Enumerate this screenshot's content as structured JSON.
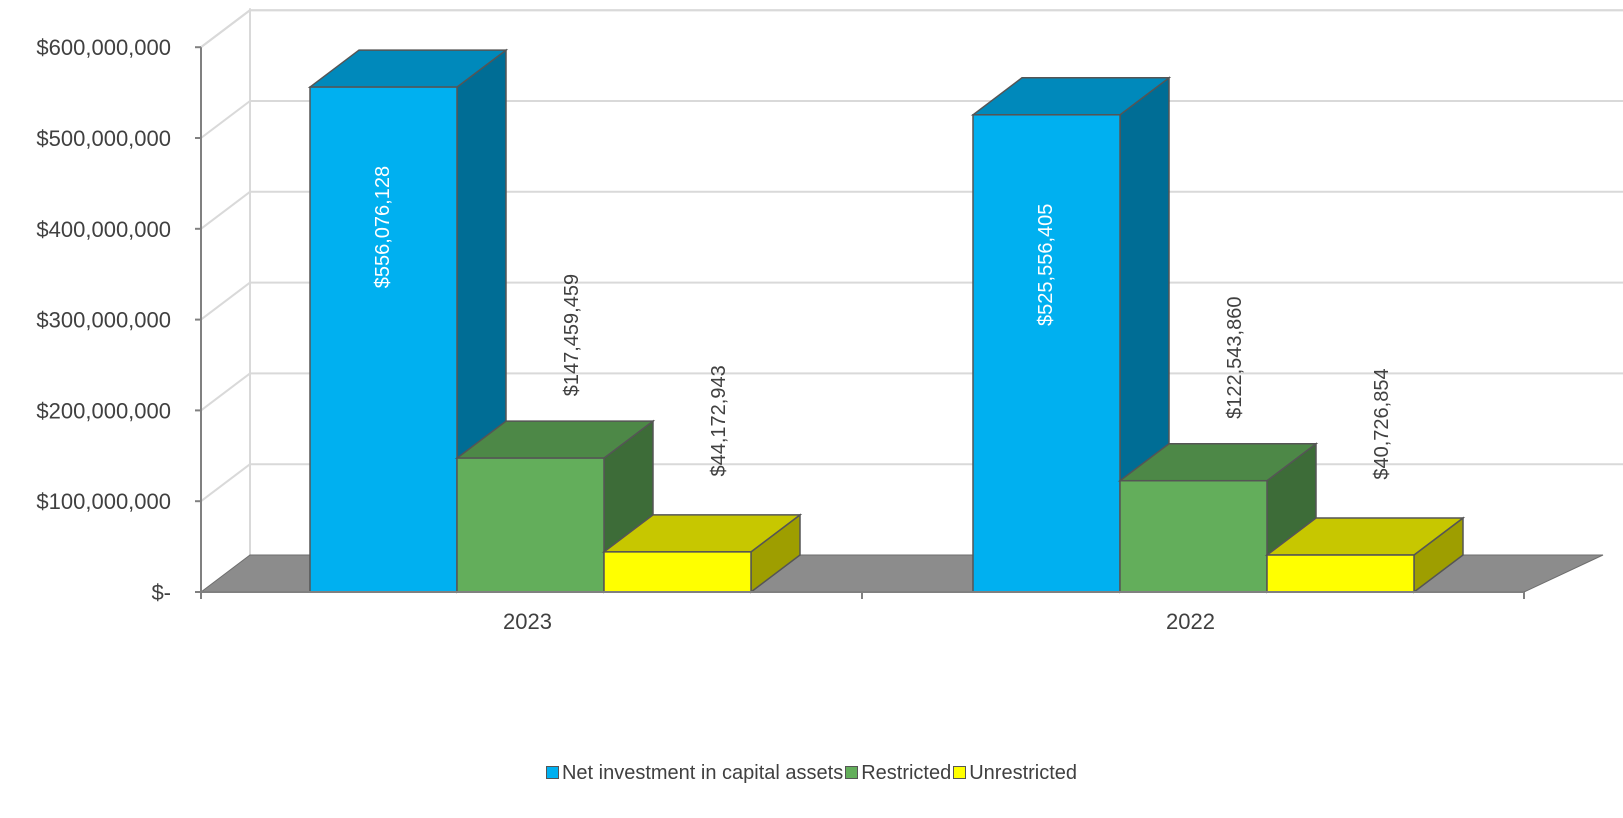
{
  "chart_data": {
    "type": "bar",
    "categories": [
      "2023",
      "2022"
    ],
    "series": [
      {
        "name": "Net investment in capital assets",
        "values": [
          556076128,
          525556405
        ],
        "labels": [
          "$556,076,128",
          "$525,556,405"
        ],
        "color": "#00B0F0"
      },
      {
        "name": "Restricted",
        "values": [
          147459459,
          122543860
        ],
        "labels": [
          "$147,459,459",
          "$122,543,860"
        ],
        "color": "#63AE5B"
      },
      {
        "name": "Unrestricted",
        "values": [
          44172943,
          40726854
        ],
        "labels": [
          "$44,172,943",
          "$40,726,854"
        ],
        "color": "#FFFF00"
      }
    ],
    "y_ticks": [
      {
        "value": 0,
        "label": "$-"
      },
      {
        "value": 100000000,
        "label": "$100,000,000"
      },
      {
        "value": 200000000,
        "label": "$200,000,000"
      },
      {
        "value": 300000000,
        "label": "$300,000,000"
      },
      {
        "value": 400000000,
        "label": "$400,000,000"
      },
      {
        "value": 500000000,
        "label": "$500,000,000"
      },
      {
        "value": 600000000,
        "label": "$600,000,000"
      }
    ],
    "ylim": [
      0,
      600000000
    ],
    "grid": true,
    "legend_position": "bottom",
    "style": "3d-clustered-column"
  }
}
